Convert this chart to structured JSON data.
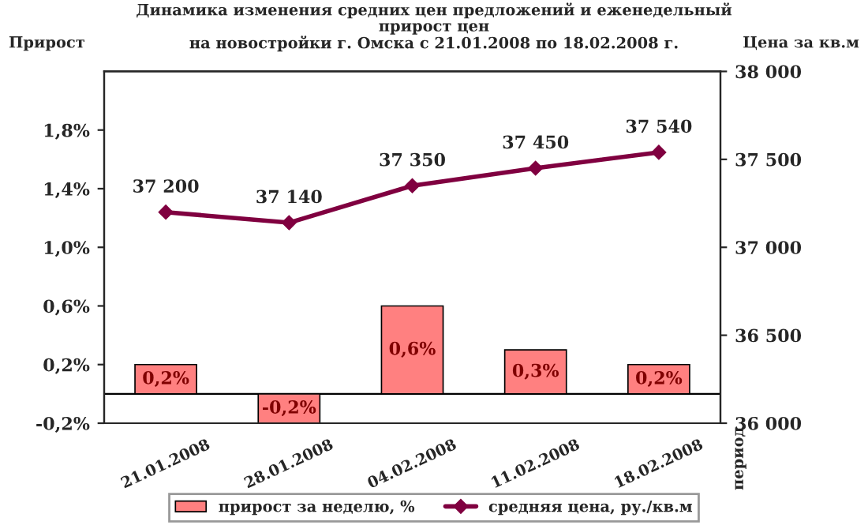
{
  "chart_data": {
    "type": "bar",
    "title": "Динамика изменения средних цен предложений и еженедельный\nприрост цен\nна новостройки г. Омска с 21.01.2008 по 18.02.2008 г.",
    "ylabel": "Прирост",
    "y2label": "Цена за кв.м",
    "annotations": [
      "период"
    ],
    "categories": [
      "21.01.2008",
      "28.01.2008",
      "04.02.2008",
      "11.02.2008",
      "18.02.2008"
    ],
    "series": [
      {
        "name": "прирост за неделю, %",
        "color": "#ff8080",
        "values": [
          0.2,
          -0.2,
          0.6,
          0.3,
          0.2
        ],
        "value_labels": [
          "0,2%",
          "-0,2%",
          "0,6%",
          "0,3%",
          "0,2%"
        ]
      },
      {
        "name": "средняя цена, ру./кв.м",
        "type": "line",
        "axis": "y2",
        "color": "#800040",
        "marker": "diamond",
        "values": [
          37200,
          37140,
          37350,
          37450,
          37540
        ],
        "value_labels": [
          "37 200",
          "37 140",
          "37 350",
          "37 450",
          "37 540"
        ]
      }
    ],
    "ylim": [
      -0.2,
      2.2
    ],
    "yticks": [
      {
        "value": -0.2,
        "label": "-0,2%"
      },
      {
        "value": 0.2,
        "label": "0,2%"
      },
      {
        "value": 0.6,
        "label": "0,6%"
      },
      {
        "value": 1.0,
        "label": "1,0%"
      },
      {
        "value": 1.4,
        "label": "1,4%"
      },
      {
        "value": 1.8,
        "label": "1,8%"
      }
    ],
    "y2lim": [
      36000,
      38000
    ],
    "y2ticks": [
      {
        "value": 36000,
        "label": "36 000"
      },
      {
        "value": 36500,
        "label": "36 500"
      },
      {
        "value": 37000,
        "label": "37 000"
      },
      {
        "value": 37500,
        "label": "37 500"
      },
      {
        "value": 38000,
        "label": "38 000"
      }
    ],
    "legend": "bottom",
    "grid": false
  }
}
